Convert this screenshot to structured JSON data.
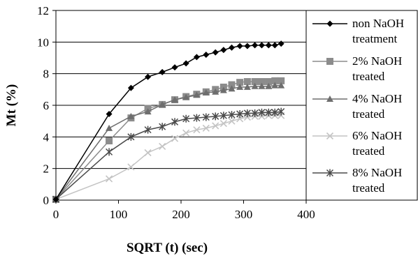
{
  "chart_data": {
    "type": "line",
    "title": "",
    "xlabel": "SQRT (t) (sec)",
    "ylabel": "Mt (%)",
    "xlim": [
      0,
      400
    ],
    "ylim": [
      0,
      12
    ],
    "xticks": [
      0,
      100,
      200,
      300,
      400
    ],
    "yticks": [
      0,
      2,
      4,
      6,
      8,
      10,
      12
    ],
    "grid": "horizontal",
    "legend_position": "right",
    "series": [
      {
        "name": "non NaOH treatment",
        "legend_lines": [
          "non NaOH",
          "treatment"
        ],
        "color": "#000000",
        "marker": "diamond",
        "points": [
          [
            0,
            0.05
          ],
          [
            85,
            5.45
          ],
          [
            120,
            7.1
          ],
          [
            147,
            7.8
          ],
          [
            170,
            8.1
          ],
          [
            190,
            8.4
          ],
          [
            208,
            8.65
          ],
          [
            225,
            9.05
          ],
          [
            240,
            9.2
          ],
          [
            255,
            9.35
          ],
          [
            268,
            9.5
          ],
          [
            281,
            9.65
          ],
          [
            294,
            9.75
          ],
          [
            306,
            9.75
          ],
          [
            318,
            9.8
          ],
          [
            329,
            9.8
          ],
          [
            340,
            9.8
          ],
          [
            350,
            9.8
          ],
          [
            360,
            9.9
          ]
        ]
      },
      {
        "name": "2% NaOH treated",
        "legend_lines": [
          "2% NaOH",
          "treated"
        ],
        "color": "#8c8c8c",
        "marker": "square",
        "points": [
          [
            0,
            0.05
          ],
          [
            85,
            3.75
          ],
          [
            120,
            5.2
          ],
          [
            147,
            5.8
          ],
          [
            170,
            6.05
          ],
          [
            190,
            6.35
          ],
          [
            208,
            6.55
          ],
          [
            225,
            6.7
          ],
          [
            240,
            6.85
          ],
          [
            255,
            7.0
          ],
          [
            268,
            7.15
          ],
          [
            281,
            7.3
          ],
          [
            294,
            7.45
          ],
          [
            306,
            7.5
          ],
          [
            318,
            7.5
          ],
          [
            329,
            7.5
          ],
          [
            340,
            7.5
          ],
          [
            350,
            7.55
          ],
          [
            360,
            7.55
          ]
        ]
      },
      {
        "name": "4% NaOH treated",
        "legend_lines": [
          "4% NaOH",
          "treated"
        ],
        "color": "#6e6e6e",
        "marker": "triangle",
        "points": [
          [
            0,
            0.05
          ],
          [
            85,
            4.55
          ],
          [
            120,
            5.3
          ],
          [
            147,
            5.6
          ],
          [
            170,
            6.05
          ],
          [
            190,
            6.35
          ],
          [
            208,
            6.5
          ],
          [
            225,
            6.65
          ],
          [
            240,
            6.8
          ],
          [
            255,
            6.85
          ],
          [
            268,
            6.95
          ],
          [
            281,
            7.05
          ],
          [
            294,
            7.15
          ],
          [
            306,
            7.15
          ],
          [
            318,
            7.2
          ],
          [
            329,
            7.2
          ],
          [
            340,
            7.2
          ],
          [
            350,
            7.25
          ],
          [
            360,
            7.25
          ]
        ]
      },
      {
        "name": "6% NaOH treated",
        "legend_lines": [
          "6% NaOH",
          "treated"
        ],
        "color": "#c4c4c4",
        "marker": "x",
        "points": [
          [
            0,
            0.05
          ],
          [
            85,
            1.35
          ],
          [
            120,
            2.1
          ],
          [
            147,
            3.0
          ],
          [
            170,
            3.4
          ],
          [
            190,
            3.9
          ],
          [
            208,
            4.25
          ],
          [
            225,
            4.45
          ],
          [
            240,
            4.55
          ],
          [
            255,
            4.7
          ],
          [
            268,
            4.85
          ],
          [
            281,
            5.0
          ],
          [
            294,
            5.15
          ],
          [
            306,
            5.25
          ],
          [
            318,
            5.3
          ],
          [
            329,
            5.3
          ],
          [
            340,
            5.35
          ],
          [
            350,
            5.35
          ],
          [
            360,
            5.35
          ]
        ]
      },
      {
        "name": "8% NaOH treated",
        "legend_lines": [
          "8% NaOH",
          "treated"
        ],
        "color": "#4a4a4a",
        "marker": "star",
        "points": [
          [
            0,
            0.05
          ],
          [
            85,
            3.05
          ],
          [
            120,
            4.0
          ],
          [
            147,
            4.45
          ],
          [
            170,
            4.65
          ],
          [
            190,
            4.95
          ],
          [
            208,
            5.15
          ],
          [
            225,
            5.2
          ],
          [
            240,
            5.25
          ],
          [
            255,
            5.3
          ],
          [
            268,
            5.35
          ],
          [
            281,
            5.4
          ],
          [
            294,
            5.45
          ],
          [
            306,
            5.5
          ],
          [
            318,
            5.5
          ],
          [
            329,
            5.55
          ],
          [
            340,
            5.55
          ],
          [
            350,
            5.55
          ],
          [
            360,
            5.6
          ]
        ]
      }
    ]
  }
}
